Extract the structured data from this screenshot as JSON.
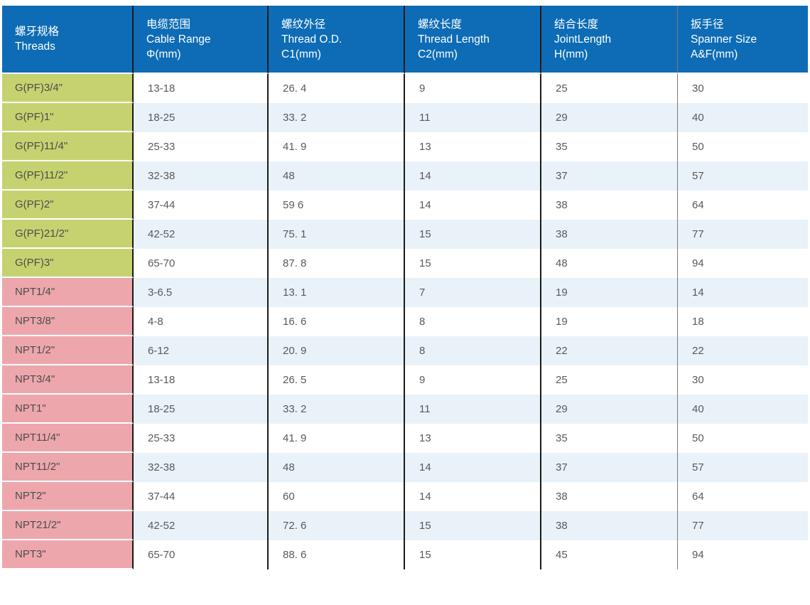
{
  "table": {
    "columns": [
      {
        "zh": "螺牙规格",
        "en": "Threads",
        "sub": ""
      },
      {
        "zh": "电缆范围",
        "en": "Cable Range",
        "sub": "Φ(mm)"
      },
      {
        "zh": "螺纹外径",
        "en": "Thread O.D.",
        "sub": "C1(mm)"
      },
      {
        "zh": "螺纹长度",
        "en": "Thread Length",
        "sub": "C2(mm)"
      },
      {
        "zh": "结合长度",
        "en": "JointLength",
        "sub": "H(mm)"
      },
      {
        "zh": "扳手径",
        "en": "Spanner Size",
        "sub": "A&F(mm)"
      }
    ],
    "rows": [
      {
        "thread": "G(PF)3/4\"",
        "group": "G",
        "cable_range": "13-18",
        "thread_od": "26. 4",
        "thread_length": "9",
        "joint_length": "25",
        "spanner": "30"
      },
      {
        "thread": "G(PF)1\"",
        "group": "G",
        "cable_range": "18-25",
        "thread_od": "33. 2",
        "thread_length": "11",
        "joint_length": "29",
        "spanner": "40"
      },
      {
        "thread": "G(PF)11/4\"",
        "group": "G",
        "cable_range": "25-33",
        "thread_od": "41. 9",
        "thread_length": "13",
        "joint_length": "35",
        "spanner": "50"
      },
      {
        "thread": "G(PF)11/2\"",
        "group": "G",
        "cable_range": "32-38",
        "thread_od": "48",
        "thread_length": "14",
        "joint_length": "37",
        "spanner": "57"
      },
      {
        "thread": "G(PF)2\"",
        "group": "G",
        "cable_range": "37-44",
        "thread_od": "59 6",
        "thread_length": "14",
        "joint_length": "38",
        "spanner": "64"
      },
      {
        "thread": "G(PF)21/2\"",
        "group": "G",
        "cable_range": "42-52",
        "thread_od": "75. 1",
        "thread_length": "15",
        "joint_length": "38",
        "spanner": "77"
      },
      {
        "thread": "G(PF)3\"",
        "group": "G",
        "cable_range": "65-70",
        "thread_od": "87. 8",
        "thread_length": "15",
        "joint_length": "48",
        "spanner": "94"
      },
      {
        "thread": "NPT1/4\"",
        "group": "NPT",
        "cable_range": "3-6.5",
        "thread_od": "13. 1",
        "thread_length": "7",
        "joint_length": "19",
        "spanner": "14"
      },
      {
        "thread": "NPT3/8\"",
        "group": "NPT",
        "cable_range": "4-8",
        "thread_od": "16. 6",
        "thread_length": "8",
        "joint_length": "19",
        "spanner": "18"
      },
      {
        "thread": "NPT1/2\"",
        "group": "NPT",
        "cable_range": "6-12",
        "thread_od": "20. 9",
        "thread_length": "8",
        "joint_length": "22",
        "spanner": "22"
      },
      {
        "thread": "NPT3/4\"",
        "group": "NPT",
        "cable_range": "13-18",
        "thread_od": "26. 5",
        "thread_length": "9",
        "joint_length": "25",
        "spanner": "30"
      },
      {
        "thread": "NPT1\"",
        "group": "NPT",
        "cable_range": "18-25",
        "thread_od": "33. 2",
        "thread_length": "11",
        "joint_length": "29",
        "spanner": "40"
      },
      {
        "thread": "NPT11/4\"",
        "group": "NPT",
        "cable_range": "25-33",
        "thread_od": "41. 9",
        "thread_length": "13",
        "joint_length": "35",
        "spanner": "50"
      },
      {
        "thread": "NPT11/2\"",
        "group": "NPT",
        "cable_range": "32-38",
        "thread_od": "48",
        "thread_length": "14",
        "joint_length": "37",
        "spanner": "57"
      },
      {
        "thread": "NPT2\"",
        "group": "NPT",
        "cable_range": "37-44",
        "thread_od": "60",
        "thread_length": "14",
        "joint_length": "38",
        "spanner": "64"
      },
      {
        "thread": "NPT21/2\"",
        "group": "NPT",
        "cable_range": "42-52",
        "thread_od": "72. 6",
        "thread_length": "15",
        "joint_length": "38",
        "spanner": "77"
      },
      {
        "thread": "NPT3\"",
        "group": "NPT",
        "cable_range": "65-70",
        "thread_od": "88. 6",
        "thread_length": "15",
        "joint_length": "45",
        "spanner": "94"
      }
    ]
  },
  "colors": {
    "header_bg": "#0d6cb5",
    "header_text": "#ffffff",
    "g_thread_bg": "#c6d26f",
    "npt_thread_bg": "#eda7ac",
    "alt_row_bg": "#e9f2f9",
    "cell_text": "#58595b",
    "divider_dark": "#1a1a1a",
    "divider_light": "#7a7a7a"
  }
}
